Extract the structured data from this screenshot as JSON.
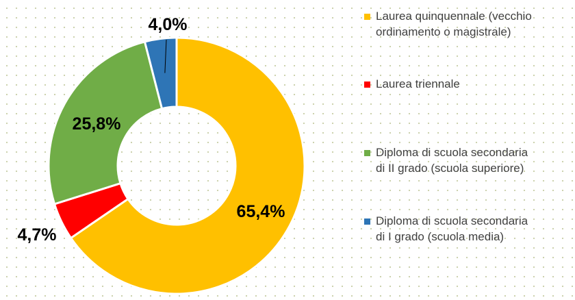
{
  "chart_data": {
    "type": "pie",
    "title": "",
    "donut": true,
    "categories": [
      "Laurea quinquennale (vecchio ordinamento o magistrale)",
      "Laurea triennale",
      "Diploma di scuola secondaria di II grado (scuola superiore)",
      "Diploma di scuola secondaria di I grado (scuola media)"
    ],
    "values": [
      65.4,
      4.7,
      25.8,
      4.0
    ],
    "data_labels": [
      "65,4%",
      "4,7%",
      "25,8%",
      "4,0%"
    ],
    "colors": [
      "#FFC000",
      "#FF0000",
      "#70AD47",
      "#2E75B6"
    ],
    "legend": {
      "position": "right",
      "items": [
        {
          "line1": "Laurea quinquennale (vecchio",
          "line2": "ordinamento o magistrale)",
          "color": "#FFC000"
        },
        {
          "line1": "Laurea triennale",
          "line2": "",
          "color": "#FF0000"
        },
        {
          "line1": "Diploma di scuola secondaria",
          "line2": "di II grado (scuola superiore)",
          "color": "#70AD47"
        },
        {
          "line1": "Diploma di scuola secondaria",
          "line2": "di I grado (scuola media)",
          "color": "#2E75B6"
        }
      ]
    }
  }
}
